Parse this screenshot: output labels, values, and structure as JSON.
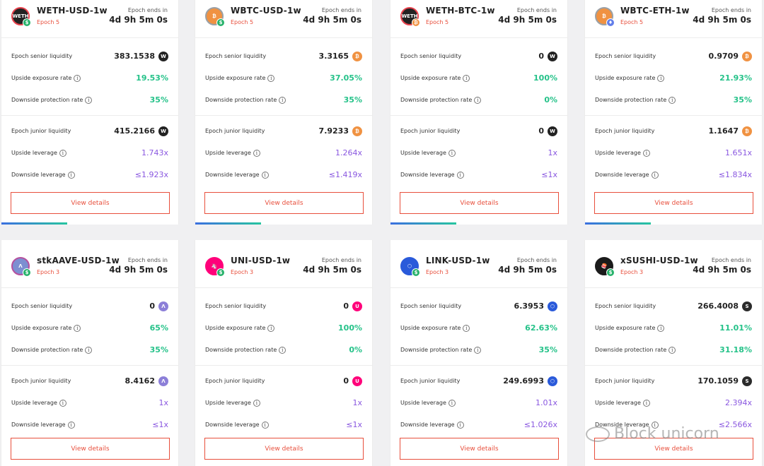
{
  "labels": {
    "epoch_ends_in": "Epoch ends in",
    "epoch_senior_liquidity": "Epoch senior liquidity",
    "upside_exposure_rate": "Upside exposure rate",
    "downside_protection_rate": "Downside protection rate",
    "epoch_junior_liquidity": "Epoch junior liquidity",
    "upside_leverage": "Upside leverage",
    "downside_leverage": "Downside leverage",
    "view_details": "View details",
    "info_glyph": "i"
  },
  "colors": {
    "accent_red": "#e84f3c",
    "positive_green": "#25c289",
    "leverage_purple": "#8a58e0"
  },
  "vaults": [
    {
      "name": "WETH-USD-1w",
      "epoch": "Epoch 5",
      "ends": "4d 9h 5m 0s",
      "icon": "weth-icon",
      "icon_text": "WETH",
      "icon_color": "#222222",
      "icon_ring": "#e8424d",
      "badge_icon": "usd-badge-icon",
      "badge_text": "$",
      "badge_color": "#27b26b",
      "asset_icon": "weth-icon",
      "asset_text": "W",
      "asset_color": "#222222",
      "senior_liquidity": "383.1538",
      "upside_exposure_rate": "19.53%",
      "downside_protection_rate": "35%",
      "junior_liquidity": "415.2166",
      "upside_leverage": "1.743x",
      "downside_leverage": "≤1.923x",
      "epoch_progress": 0.37
    },
    {
      "name": "WBTC-USD-1w",
      "epoch": "Epoch 5",
      "ends": "4d 9h 5m 0s",
      "icon": "wbtc-icon",
      "icon_text": "₿",
      "icon_color": "#f09242",
      "icon_ring": "#9aa0a6",
      "badge_icon": "usd-badge-icon",
      "badge_text": "$",
      "badge_color": "#27b26b",
      "asset_icon": "wbtc-icon",
      "asset_text": "₿",
      "asset_color": "#f09242",
      "senior_liquidity": "3.3165",
      "upside_exposure_rate": "37.05%",
      "downside_protection_rate": "35%",
      "junior_liquidity": "7.9233",
      "upside_leverage": "1.264x",
      "downside_leverage": "≤1.419x",
      "epoch_progress": 0.37
    },
    {
      "name": "WETH-BTC-1w",
      "epoch": "Epoch 5",
      "ends": "4d 9h 5m 0s",
      "icon": "weth-icon",
      "icon_text": "WETH",
      "icon_color": "#222222",
      "icon_ring": "#e8424d",
      "badge_icon": "btc-badge-icon",
      "badge_text": "₿",
      "badge_color": "#f09242",
      "asset_icon": "weth-icon",
      "asset_text": "W",
      "asset_color": "#222222",
      "senior_liquidity": "0",
      "upside_exposure_rate": "100%",
      "downside_protection_rate": "0%",
      "junior_liquidity": "0",
      "upside_leverage": "1x",
      "downside_leverage": "≤1x",
      "epoch_progress": 0.37
    },
    {
      "name": "WBTC-ETH-1w",
      "epoch": "Epoch 5",
      "ends": "4d 9h 5m 0s",
      "icon": "wbtc-icon",
      "icon_text": "₿",
      "icon_color": "#f09242",
      "icon_ring": "#9aa0a6",
      "badge_icon": "eth-badge-icon",
      "badge_text": "♦",
      "badge_color": "#627eea",
      "asset_icon": "wbtc-icon",
      "asset_text": "₿",
      "asset_color": "#f09242",
      "senior_liquidity": "0.9709",
      "upside_exposure_rate": "21.93%",
      "downside_protection_rate": "35%",
      "junior_liquidity": "1.1647",
      "upside_leverage": "1.651x",
      "downside_leverage": "≤1.834x",
      "epoch_progress": 0.37
    },
    {
      "name": "stkAAVE-USD-1w",
      "epoch": "Epoch 3",
      "ends": "4d 9h 5m 0s",
      "icon": "stkaave-icon",
      "icon_text": "Λ",
      "icon_color": "#7d8fd1",
      "icon_ring": "#b6509e",
      "badge_icon": "usd-badge-icon",
      "badge_text": "$",
      "badge_color": "#27b26b",
      "asset_icon": "stkaave-icon",
      "asset_text": "Λ",
      "asset_color": "#8c7fd8",
      "senior_liquidity": "0",
      "upside_exposure_rate": "65%",
      "downside_protection_rate": "35%",
      "junior_liquidity": "8.4162",
      "upside_leverage": "1x",
      "downside_leverage": "≤1x"
    },
    {
      "name": "UNI-USD-1w",
      "epoch": "Epoch 3",
      "ends": "4d 9h 5m 0s",
      "icon": "uni-icon",
      "icon_text": "🦄",
      "icon_color": "#ff007a",
      "icon_ring": "#ff007a",
      "badge_icon": "usd-badge-icon",
      "badge_text": "$",
      "badge_color": "#27b26b",
      "asset_icon": "uni-icon",
      "asset_text": "U",
      "asset_color": "#ff007a",
      "senior_liquidity": "0",
      "upside_exposure_rate": "100%",
      "downside_protection_rate": "0%",
      "junior_liquidity": "0",
      "upside_leverage": "1x",
      "downside_leverage": "≤1x"
    },
    {
      "name": "LINK-USD-1w",
      "epoch": "Epoch 3",
      "ends": "4d 9h 5m 0s",
      "icon": "link-icon",
      "icon_text": "⬡",
      "icon_color": "#2a5ada",
      "icon_ring": "#2a5ada",
      "badge_icon": "usd-badge-icon",
      "badge_text": "$",
      "badge_color": "#27b26b",
      "asset_icon": "link-icon",
      "asset_text": "⬡",
      "asset_color": "#2a5ada",
      "senior_liquidity": "6.3953",
      "upside_exposure_rate": "62.63%",
      "downside_protection_rate": "35%",
      "junior_liquidity": "249.6993",
      "upside_leverage": "1.01x",
      "downside_leverage": "≤1.026x"
    },
    {
      "name": "xSUSHI-USD-1w",
      "epoch": "Epoch 3",
      "ends": "4d 9h 5m 0s",
      "icon": "xsushi-icon",
      "icon_text": "🍣",
      "icon_color": "#1b1b1b",
      "icon_ring": "#1b1b1b",
      "badge_icon": "usd-badge-icon",
      "badge_text": "$",
      "badge_color": "#27b26b",
      "asset_icon": "xsushi-icon",
      "asset_text": "S",
      "asset_color": "#2b2b2b",
      "senior_liquidity": "266.4008",
      "upside_exposure_rate": "11.01%",
      "downside_protection_rate": "31.18%",
      "junior_liquidity": "170.1059",
      "upside_leverage": "2.394x",
      "downside_leverage": "≤2.566x"
    }
  ],
  "watermark": {
    "text": "Block unicorn",
    "icon": "wechat-icon"
  }
}
